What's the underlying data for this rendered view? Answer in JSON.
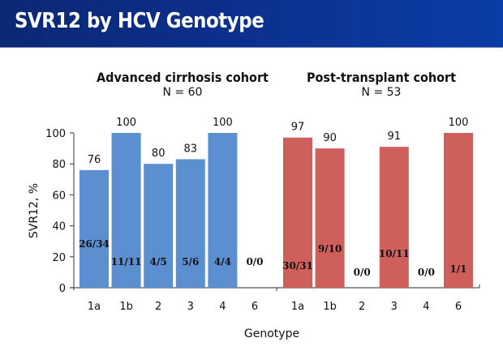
{
  "header": {
    "title": "SVR12 by HCV Genotype"
  },
  "colors": {
    "header_start": "#0b2873",
    "header_end": "#0b3da6",
    "cirrhosis_bar": "#5b8fcf",
    "transplant_bar": "#cf5f5b"
  },
  "chart_data": {
    "type": "bar",
    "title": "SVR12 by HCV Genotype",
    "xlabel": "Genotype",
    "ylabel": "SVR12, %",
    "ylim": [
      0,
      100
    ],
    "yticks": [
      0,
      20,
      40,
      60,
      80,
      100
    ],
    "grid": false,
    "groups": [
      {
        "name": "Advanced cirrhosis cohort",
        "n_label": "N = 60",
        "color": "#5b8fcf",
        "categories": [
          "1a",
          "1b",
          "2",
          "3",
          "4",
          "6"
        ],
        "values": [
          76,
          100,
          80,
          83,
          100,
          null
        ],
        "value_labels": [
          "76",
          "100",
          "80",
          "83",
          "100",
          ""
        ],
        "fractions": [
          "26/34",
          "11/11",
          "4/5",
          "5/6",
          "4/4",
          "0/0"
        ]
      },
      {
        "name": "Post-transplant cohort",
        "n_label": "N = 53",
        "color": "#cf5f5b",
        "categories": [
          "1a",
          "1b",
          "2",
          "3",
          "4",
          "6"
        ],
        "values": [
          97,
          90,
          null,
          91,
          null,
          100
        ],
        "value_labels": [
          "97",
          "90",
          "",
          "91",
          "",
          "100"
        ],
        "fractions": [
          "30/31",
          "9/10",
          "0/0",
          "10/11",
          "0/0",
          "1/1"
        ]
      }
    ]
  }
}
